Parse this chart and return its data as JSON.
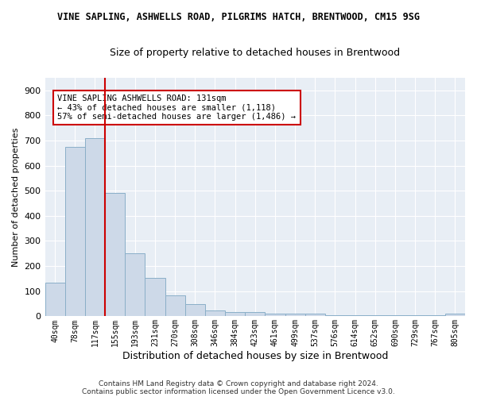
{
  "title": "VINE SAPLING, ASHWELLS ROAD, PILGRIMS HATCH, BRENTWOOD, CM15 9SG",
  "subtitle": "Size of property relative to detached houses in Brentwood",
  "xlabel": "Distribution of detached houses by size in Brentwood",
  "ylabel": "Number of detached properties",
  "bar_labels": [
    "40sqm",
    "78sqm",
    "117sqm",
    "155sqm",
    "193sqm",
    "231sqm",
    "270sqm",
    "308sqm",
    "346sqm",
    "384sqm",
    "423sqm",
    "461sqm",
    "499sqm",
    "537sqm",
    "576sqm",
    "614sqm",
    "652sqm",
    "690sqm",
    "729sqm",
    "767sqm",
    "805sqm"
  ],
  "bar_values": [
    133,
    675,
    710,
    492,
    250,
    152,
    85,
    48,
    22,
    17,
    17,
    10,
    10,
    10,
    6,
    5,
    5,
    5,
    5,
    5,
    10
  ],
  "bar_color": "#cdd9e8",
  "bar_edge_color": "#8aafc8",
  "vline_x": 2.5,
  "vline_color": "#cc0000",
  "annotation_text": "VINE SAPLING ASHWELLS ROAD: 131sqm\n← 43% of detached houses are smaller (1,118)\n57% of semi-detached houses are larger (1,486) →",
  "annotation_box_color": "#ffffff",
  "annotation_box_edge": "#cc0000",
  "ylim": [
    0,
    950
  ],
  "yticks": [
    0,
    100,
    200,
    300,
    400,
    500,
    600,
    700,
    800,
    900
  ],
  "footer_line1": "Contains HM Land Registry data © Crown copyright and database right 2024.",
  "footer_line2": "Contains public sector information licensed under the Open Government Licence v3.0.",
  "bg_color": "#ffffff",
  "plot_bg_color": "#e8eef5",
  "grid_color": "#ffffff"
}
